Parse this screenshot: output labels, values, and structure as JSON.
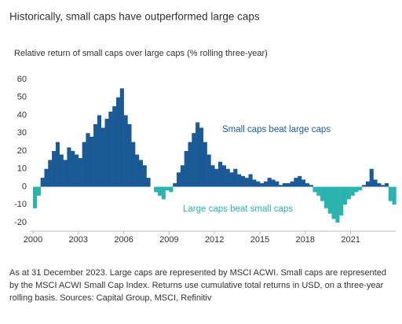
{
  "chart_data": {
    "type": "bar",
    "title": "Historically, small caps have outperformed large caps",
    "subtitle": "Relative return of small caps over large caps (% rolling three-year)",
    "annotations": [
      "Small caps beat large caps",
      "Large caps beat small caps"
    ],
    "colors": {
      "positive": "#1b5a96",
      "negative": "#2bb3b0"
    },
    "x": [
      2000,
      2000.25,
      2000.5,
      2000.75,
      2001,
      2001.25,
      2001.5,
      2001.75,
      2002,
      2002.25,
      2002.5,
      2002.75,
      2003,
      2003.25,
      2003.5,
      2003.75,
      2004,
      2004.25,
      2004.5,
      2004.75,
      2005,
      2005.25,
      2005.5,
      2005.75,
      2006,
      2006.25,
      2006.5,
      2006.75,
      2007,
      2007.25,
      2007.5,
      2007.75,
      2008,
      2008.25,
      2008.5,
      2008.75,
      2009,
      2009.25,
      2009.5,
      2009.75,
      2010,
      2010.25,
      2010.5,
      2010.75,
      2011,
      2011.25,
      2011.5,
      2011.75,
      2012,
      2012.25,
      2012.5,
      2012.75,
      2013,
      2013.25,
      2013.5,
      2013.75,
      2014,
      2014.25,
      2014.5,
      2014.75,
      2015,
      2015.25,
      2015.5,
      2015.75,
      2016,
      2016.25,
      2016.5,
      2016.75,
      2017,
      2017.25,
      2017.5,
      2017.75,
      2018,
      2018.25,
      2018.5,
      2018.75,
      2019,
      2019.25,
      2019.5,
      2019.75,
      2020,
      2020.25,
      2020.5,
      2020.75,
      2021,
      2021.25,
      2021.5,
      2021.75,
      2022,
      2022.25,
      2022.5,
      2022.75,
      2023,
      2023.25,
      2023.5,
      2023.75
    ],
    "values": [
      -12,
      -5,
      5,
      10,
      15,
      20,
      25,
      18,
      15,
      22,
      20,
      18,
      16,
      25,
      30,
      28,
      35,
      40,
      33,
      38,
      42,
      45,
      50,
      55,
      40,
      35,
      25,
      18,
      15,
      12,
      5,
      0,
      -3,
      -5,
      -7,
      -2,
      -3,
      2,
      8,
      12,
      20,
      25,
      30,
      36,
      33,
      25,
      18,
      12,
      10,
      14,
      12,
      10,
      8,
      10,
      7,
      6,
      5,
      7,
      4,
      3,
      2,
      3,
      5,
      4,
      3,
      1,
      2,
      2,
      3,
      5,
      6,
      4,
      2,
      1,
      -3,
      -5,
      -8,
      -12,
      -15,
      -18,
      -20,
      -16,
      -10,
      -7,
      -5,
      -3,
      -2,
      1,
      3,
      10,
      4,
      2,
      1,
      2,
      -8,
      -10
    ],
    "xlim": [
      2000,
      2024
    ],
    "xticks": [
      2000,
      2003,
      2006,
      2009,
      2012,
      2015,
      2018,
      2021
    ],
    "ylim": [
      -20,
      60
    ],
    "yticks": [
      -20,
      -10,
      0,
      10,
      20,
      30,
      40,
      50,
      60
    ],
    "grid": false
  },
  "footnote": "As at 31 December 2023. Large caps are represented by MSCI ACWI. Small caps are represented by the MSCI ACWI Small Cap Index. Returns use cumulative total returns in USD, on a three-year rolling basis. Sources: Capital Group, MSCI, Refinitiv"
}
